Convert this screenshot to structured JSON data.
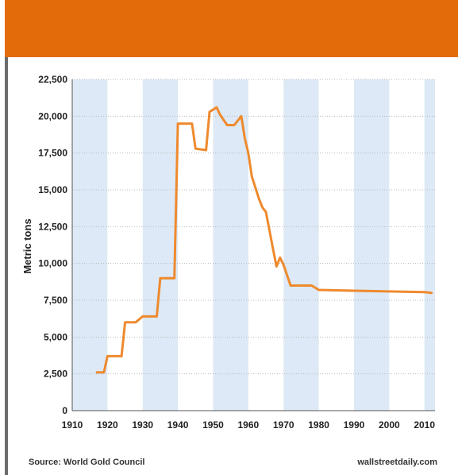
{
  "header": {
    "title": "",
    "background_color": "#e36c0a"
  },
  "footer": {
    "source": "Source: World Gold Council",
    "credit": "wallstreetdaily.com"
  },
  "chart_data": {
    "type": "line",
    "title": "",
    "xlabel": "",
    "ylabel": "Metric tons",
    "xlim": [
      1910,
      2013
    ],
    "ylim": [
      0,
      22500
    ],
    "xticks": [
      1910,
      1920,
      1930,
      1940,
      1950,
      1960,
      1970,
      1980,
      1990,
      2000,
      2010
    ],
    "yticks": [
      0,
      2500,
      5000,
      7500,
      10000,
      12500,
      15000,
      17500,
      20000,
      22500
    ],
    "ytick_labels": [
      "0",
      "2,500",
      "5,000",
      "7,500",
      "10,000",
      "12,500",
      "15,000",
      "17,500",
      "20,000",
      "22,500"
    ],
    "grid": true,
    "alternating_bands": true,
    "band_color": "#dde9f6",
    "line_color": "#ee8a2e",
    "series": [
      {
        "x": [
          1917,
          1919,
          1920,
          1924,
          1925,
          1928,
          1930,
          1934,
          1935,
          1939,
          1940,
          1944,
          1945,
          1948,
          1949,
          1951,
          1952,
          1954,
          1956,
          1958,
          1959,
          1960,
          1961,
          1963,
          1964,
          1965,
          1967,
          1968,
          1969,
          1970,
          1972,
          1978,
          1980,
          1990,
          2000,
          2010,
          2012
        ],
        "y": [
          2600,
          2600,
          3700,
          3700,
          6000,
          6000,
          6400,
          6400,
          9000,
          9000,
          19500,
          19500,
          17800,
          17700,
          20300,
          20600,
          20100,
          19400,
          19400,
          20000,
          18500,
          17500,
          15900,
          14400,
          13800,
          13500,
          11000,
          9800,
          10400,
          9900,
          8500,
          8500,
          8200,
          8150,
          8100,
          8050,
          8000
        ]
      }
    ]
  }
}
